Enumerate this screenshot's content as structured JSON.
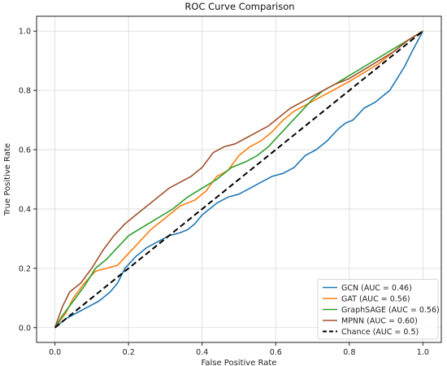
{
  "chart_data": {
    "type": "line",
    "title": "ROC Curve Comparison",
    "xlabel": "False Positive Rate",
    "ylabel": "True Positive Rate",
    "xlim": [
      -0.05,
      1.05
    ],
    "ylim": [
      -0.05,
      1.05
    ],
    "xticks": [
      "0.0",
      "0.2",
      "0.4",
      "0.6",
      "0.8",
      "1.0"
    ],
    "yticks": [
      "0.0",
      "0.2",
      "0.4",
      "0.6",
      "0.8",
      "1.0"
    ],
    "grid": true,
    "legend_position": "lower-right",
    "series": [
      {
        "name": "GCN (AUC = 0.46)",
        "color": "#1f77b4",
        "dashed": false,
        "x": [
          0,
          0.03,
          0.06,
          0.09,
          0.12,
          0.15,
          0.17,
          0.19,
          0.22,
          0.25,
          0.28,
          0.31,
          0.34,
          0.36,
          0.38,
          0.4,
          0.42,
          0.44,
          0.47,
          0.5,
          0.53,
          0.56,
          0.59,
          0.62,
          0.65,
          0.68,
          0.71,
          0.74,
          0.77,
          0.79,
          0.81,
          0.84,
          0.87,
          0.89,
          0.91,
          0.93,
          0.95,
          0.97,
          1.0
        ],
        "y": [
          0,
          0.03,
          0.05,
          0.07,
          0.09,
          0.12,
          0.15,
          0.2,
          0.24,
          0.27,
          0.29,
          0.31,
          0.32,
          0.33,
          0.35,
          0.38,
          0.4,
          0.42,
          0.44,
          0.45,
          0.47,
          0.49,
          0.51,
          0.52,
          0.54,
          0.58,
          0.6,
          0.63,
          0.67,
          0.69,
          0.7,
          0.74,
          0.76,
          0.78,
          0.8,
          0.84,
          0.88,
          0.93,
          1.0
        ]
      },
      {
        "name": "GAT (AUC = 0.56)",
        "color": "#ff7f0e",
        "dashed": false,
        "x": [
          0,
          0.03,
          0.05,
          0.08,
          0.11,
          0.14,
          0.17,
          0.2,
          0.23,
          0.26,
          0.3,
          0.34,
          0.38,
          0.41,
          0.44,
          0.47,
          0.5,
          0.53,
          0.56,
          0.59,
          0.62,
          0.65,
          0.68,
          0.71,
          0.74,
          0.77,
          0.8,
          0.84,
          0.88,
          0.92,
          0.96,
          1.0
        ],
        "y": [
          0,
          0.05,
          0.1,
          0.15,
          0.19,
          0.2,
          0.21,
          0.25,
          0.29,
          0.33,
          0.37,
          0.41,
          0.43,
          0.46,
          0.51,
          0.53,
          0.58,
          0.61,
          0.63,
          0.66,
          0.7,
          0.73,
          0.75,
          0.77,
          0.79,
          0.81,
          0.83,
          0.86,
          0.89,
          0.93,
          0.97,
          1.0
        ]
      },
      {
        "name": "GraphSAGE (AUC = 0.56)",
        "color": "#2ca02c",
        "dashed": false,
        "x": [
          0,
          0.02,
          0.05,
          0.08,
          0.11,
          0.14,
          0.17,
          0.2,
          0.24,
          0.28,
          0.32,
          0.36,
          0.4,
          0.44,
          0.48,
          0.52,
          0.55,
          0.58,
          0.61,
          0.64,
          0.67,
          0.7,
          0.73,
          0.76,
          0.8,
          0.84,
          0.88,
          0.92,
          0.96,
          1.0
        ],
        "y": [
          0,
          0.04,
          0.09,
          0.14,
          0.2,
          0.23,
          0.27,
          0.31,
          0.34,
          0.37,
          0.4,
          0.44,
          0.47,
          0.5,
          0.54,
          0.56,
          0.58,
          0.61,
          0.65,
          0.69,
          0.73,
          0.77,
          0.8,
          0.82,
          0.85,
          0.88,
          0.91,
          0.94,
          0.97,
          1.0
        ]
      },
      {
        "name": "MPNN (AUC = 0.60)",
        "color": "#a0522d",
        "dashed": false,
        "x": [
          0,
          0.02,
          0.04,
          0.07,
          0.1,
          0.13,
          0.16,
          0.19,
          0.22,
          0.25,
          0.28,
          0.31,
          0.34,
          0.37,
          0.4,
          0.43,
          0.46,
          0.49,
          0.52,
          0.55,
          0.58,
          0.61,
          0.64,
          0.67,
          0.7,
          0.73,
          0.76,
          0.8,
          0.84,
          0.88,
          0.92,
          0.96,
          1.0
        ],
        "y": [
          0,
          0.07,
          0.12,
          0.15,
          0.2,
          0.26,
          0.31,
          0.35,
          0.38,
          0.41,
          0.44,
          0.47,
          0.49,
          0.51,
          0.54,
          0.59,
          0.61,
          0.62,
          0.64,
          0.66,
          0.68,
          0.71,
          0.74,
          0.76,
          0.78,
          0.8,
          0.82,
          0.84,
          0.87,
          0.9,
          0.93,
          0.97,
          1.0
        ]
      },
      {
        "name": "Chance (AUC = 0.5)",
        "color": "#000000",
        "dashed": true,
        "x": [
          0,
          1
        ],
        "y": [
          0,
          1
        ]
      }
    ]
  }
}
